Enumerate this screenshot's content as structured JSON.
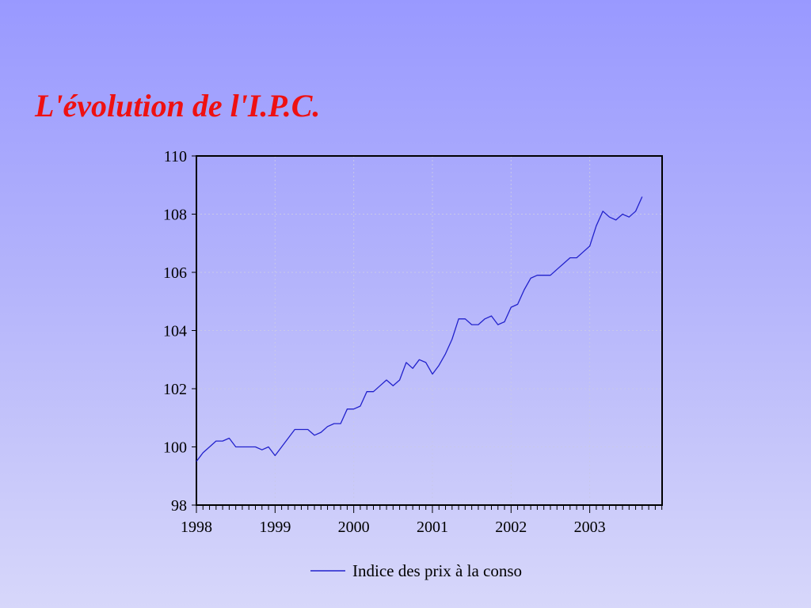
{
  "slide": {
    "title": "L'évolution de l'I.P.C."
  },
  "colors": {
    "line": "#2222cc",
    "title": "#ee1111"
  },
  "chart_data": {
    "type": "line",
    "title": "L'évolution de l'I.P.C.",
    "xlabel": "",
    "ylabel": "",
    "xlim": [
      1998,
      2003.92
    ],
    "ylim": [
      98,
      110
    ],
    "x_ticks": [
      "1998",
      "1999",
      "2000",
      "2001",
      "2002",
      "2003"
    ],
    "y_ticks": [
      "98",
      "100",
      "102",
      "104",
      "106",
      "108",
      "110"
    ],
    "grid": true,
    "legend": {
      "position": "bottom-center"
    },
    "x_start": "1998-01",
    "frequency": "monthly",
    "series": [
      {
        "name": "Indice des prix à la conso",
        "values": [
          99.5,
          99.8,
          100.0,
          100.2,
          100.2,
          100.3,
          100.0,
          100.0,
          100.0,
          100.0,
          99.9,
          100.0,
          99.7,
          100.0,
          100.3,
          100.6,
          100.6,
          100.6,
          100.4,
          100.5,
          100.7,
          100.8,
          100.8,
          101.3,
          101.3,
          101.4,
          101.9,
          101.9,
          102.1,
          102.3,
          102.1,
          102.3,
          102.9,
          102.7,
          103.0,
          102.9,
          102.5,
          102.8,
          103.2,
          103.7,
          104.4,
          104.4,
          104.2,
          104.2,
          104.4,
          104.5,
          104.2,
          104.3,
          104.8,
          104.9,
          105.4,
          105.8,
          105.9,
          105.9,
          105.9,
          106.1,
          106.3,
          106.5,
          106.5,
          106.7,
          106.9,
          107.6,
          108.1,
          107.9,
          107.8,
          108.0,
          107.9,
          108.1,
          108.6
        ]
      }
    ]
  }
}
